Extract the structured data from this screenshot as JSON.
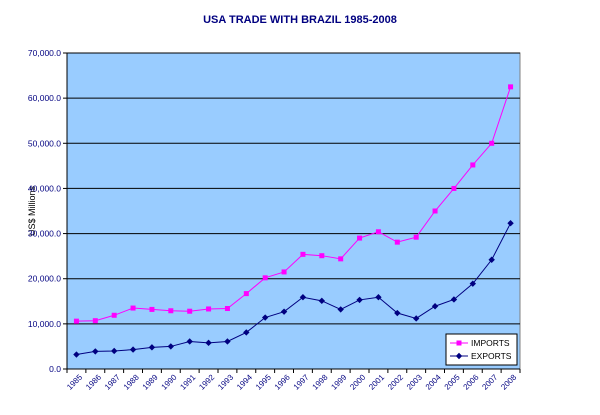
{
  "chart_data": {
    "type": "line",
    "title": "USA TRADE WITH BRAZIL 1985-2008",
    "ylabel": "US$ Millions",
    "xlabel": "",
    "ylim": [
      0,
      70000
    ],
    "y_ticks": [
      "0.0",
      "10,000.0",
      "20,000.0",
      "30,000.0",
      "40,000.0",
      "50,000.0",
      "60,000.0",
      "70,000.0"
    ],
    "categories": [
      "1985",
      "1986",
      "1987",
      "1988",
      "1989",
      "1990",
      "1991",
      "1992",
      "1993",
      "1994",
      "1995",
      "1996",
      "1997",
      "1998",
      "1999",
      "2000",
      "2001",
      "2002",
      "2003",
      "2004",
      "2005",
      "2006",
      "2007",
      "2008"
    ],
    "grid": true,
    "legend_position": "bottom-right",
    "plot_background": "#99ccff",
    "series": [
      {
        "name": "IMPORTS",
        "color": "#ff00ff",
        "marker": "square",
        "values": [
          10600,
          10700,
          11900,
          13500,
          13200,
          12900,
          12800,
          13300,
          13400,
          16700,
          20200,
          21500,
          25400,
          25100,
          24400,
          29000,
          30400,
          28100,
          29200,
          35000,
          40000,
          45200,
          50000,
          62500
        ]
      },
      {
        "name": "EXPORTS",
        "color": "#000080",
        "marker": "diamond",
        "values": [
          3200,
          3900,
          4000,
          4300,
          4800,
          5000,
          6100,
          5800,
          6100,
          8100,
          11400,
          12700,
          15900,
          15100,
          13200,
          15300,
          15900,
          12400,
          11200,
          13900,
          15400,
          18900,
          24200,
          32300
        ]
      }
    ]
  }
}
